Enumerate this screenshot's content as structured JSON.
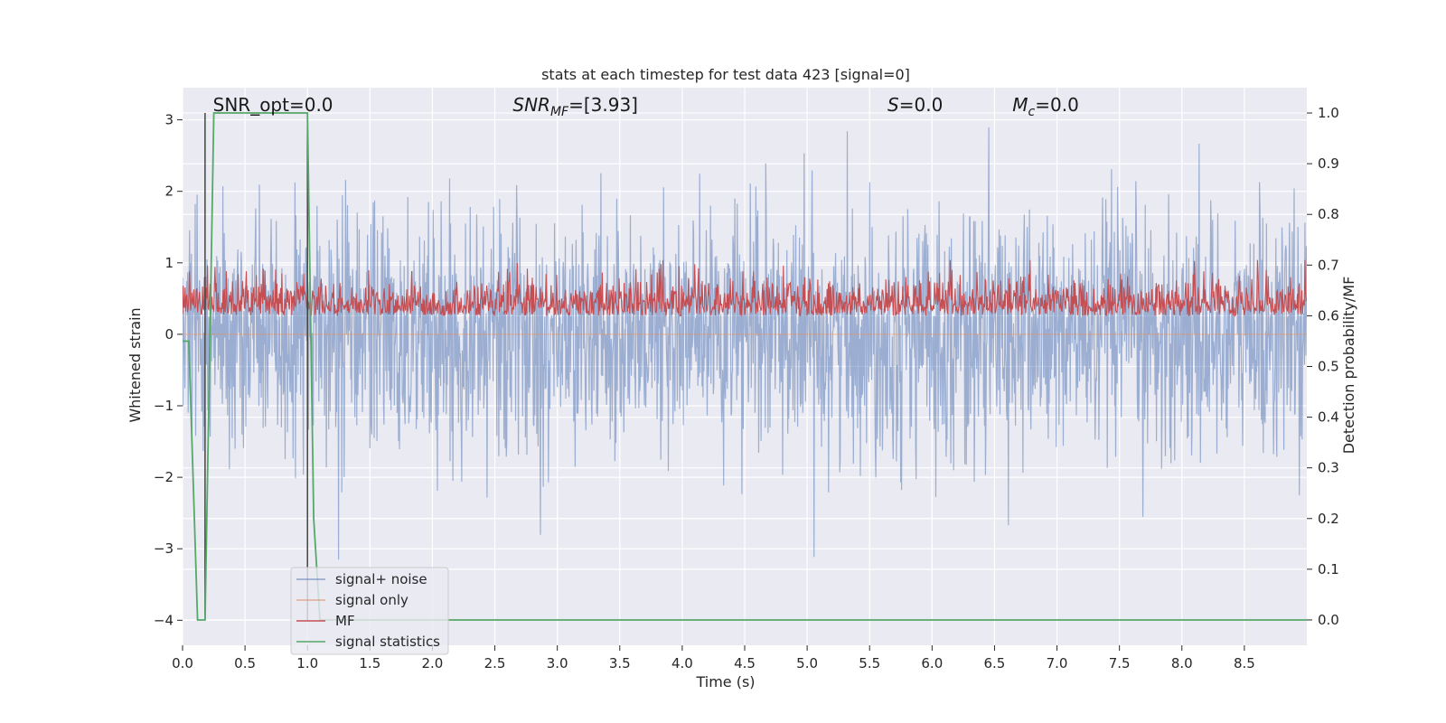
{
  "chart_data": {
    "type": "line",
    "title": "stats at each timestep for test data 423 [signal=0]",
    "xlabel": "Time (s)",
    "ylabel_left": "Whitened strain",
    "ylabel_right": "Detection probability/MF",
    "xlim": [
      0.0,
      9.0
    ],
    "ylim_left": [
      -4.35,
      3.45
    ],
    "ylim_right": [
      -0.05,
      1.05
    ],
    "x_ticks": [
      0.0,
      0.5,
      1.0,
      1.5,
      2.0,
      2.5,
      3.0,
      3.5,
      4.0,
      4.5,
      5.0,
      5.5,
      6.0,
      6.5,
      7.0,
      7.5,
      8.0,
      8.5
    ],
    "x_tick_labels": [
      "0.0",
      "0.5",
      "1.0",
      "1.5",
      "2.0",
      "2.5",
      "3.0",
      "3.5",
      "4.0",
      "4.5",
      "5.0",
      "5.5",
      "6.0",
      "6.5",
      "7.0",
      "7.5",
      "8.0",
      "8.5"
    ],
    "y_left_ticks": [
      -4,
      -3,
      -2,
      -1,
      0,
      1,
      2,
      3
    ],
    "y_left_tick_labels": [
      "−4",
      "−3",
      "−2",
      "−1",
      "0",
      "1",
      "2",
      "3"
    ],
    "y_right_ticks": [
      0.0,
      0.1,
      0.2,
      0.3,
      0.4,
      0.5,
      0.6,
      0.7,
      0.8,
      0.9,
      1.0
    ],
    "y_right_tick_labels": [
      "0.0",
      "0.1",
      "0.2",
      "0.3",
      "0.4",
      "0.5",
      "0.6",
      "0.7",
      "0.8",
      "0.9",
      "1.0"
    ],
    "grid": true,
    "legend_position": "lower-left",
    "annotations": [
      {
        "text": "SNR_opt=0.0",
        "x": 0.2,
        "y_right": 1.0
      },
      {
        "text": "SNR_MF=[3.93]",
        "x": 2.6,
        "y_right": 1.0
      },
      {
        "text": "S=0.0",
        "x": 5.6,
        "y_right": 1.0
      },
      {
        "text": "M_c=0.0",
        "x": 6.6,
        "y_right": 1.0
      }
    ],
    "vertical_lines": [
      0.18,
      1.0
    ],
    "series": [
      {
        "name": "signal+ noise",
        "axis": "left",
        "color": "#4c72b0",
        "opacity": 0.5,
        "description_range": [
          -3.8,
          3.1
        ],
        "noise_std": 0.85
      },
      {
        "name": "signal only",
        "axis": "left",
        "color": "#dd8452",
        "values_constant": 0.0
      },
      {
        "name": "MF",
        "axis": "right",
        "color": "#c44e52",
        "baseline": 0.6,
        "range": [
          0.56,
          0.71
        ]
      },
      {
        "name": "signal statistics",
        "axis": "right",
        "color": "#55a868",
        "x": [
          0.0,
          0.05,
          0.12,
          0.18,
          0.25,
          1.0,
          1.05,
          1.1,
          9.0
        ],
        "y": [
          0.55,
          0.55,
          0.0,
          0.0,
          1.0,
          1.0,
          0.2,
          0.0,
          0.0
        ]
      }
    ]
  },
  "legend": {
    "items": [
      {
        "label": "signal+ noise",
        "color": "#4c72b0"
      },
      {
        "label": "signal only",
        "color": "#dd8452"
      },
      {
        "label": "MF",
        "color": "#c44e52"
      },
      {
        "label": "signal statistics",
        "color": "#55a868"
      }
    ]
  },
  "colors": {
    "plot_background": "#eaeaf2",
    "grid": "#ffffff",
    "vertical_line": "#444444"
  }
}
